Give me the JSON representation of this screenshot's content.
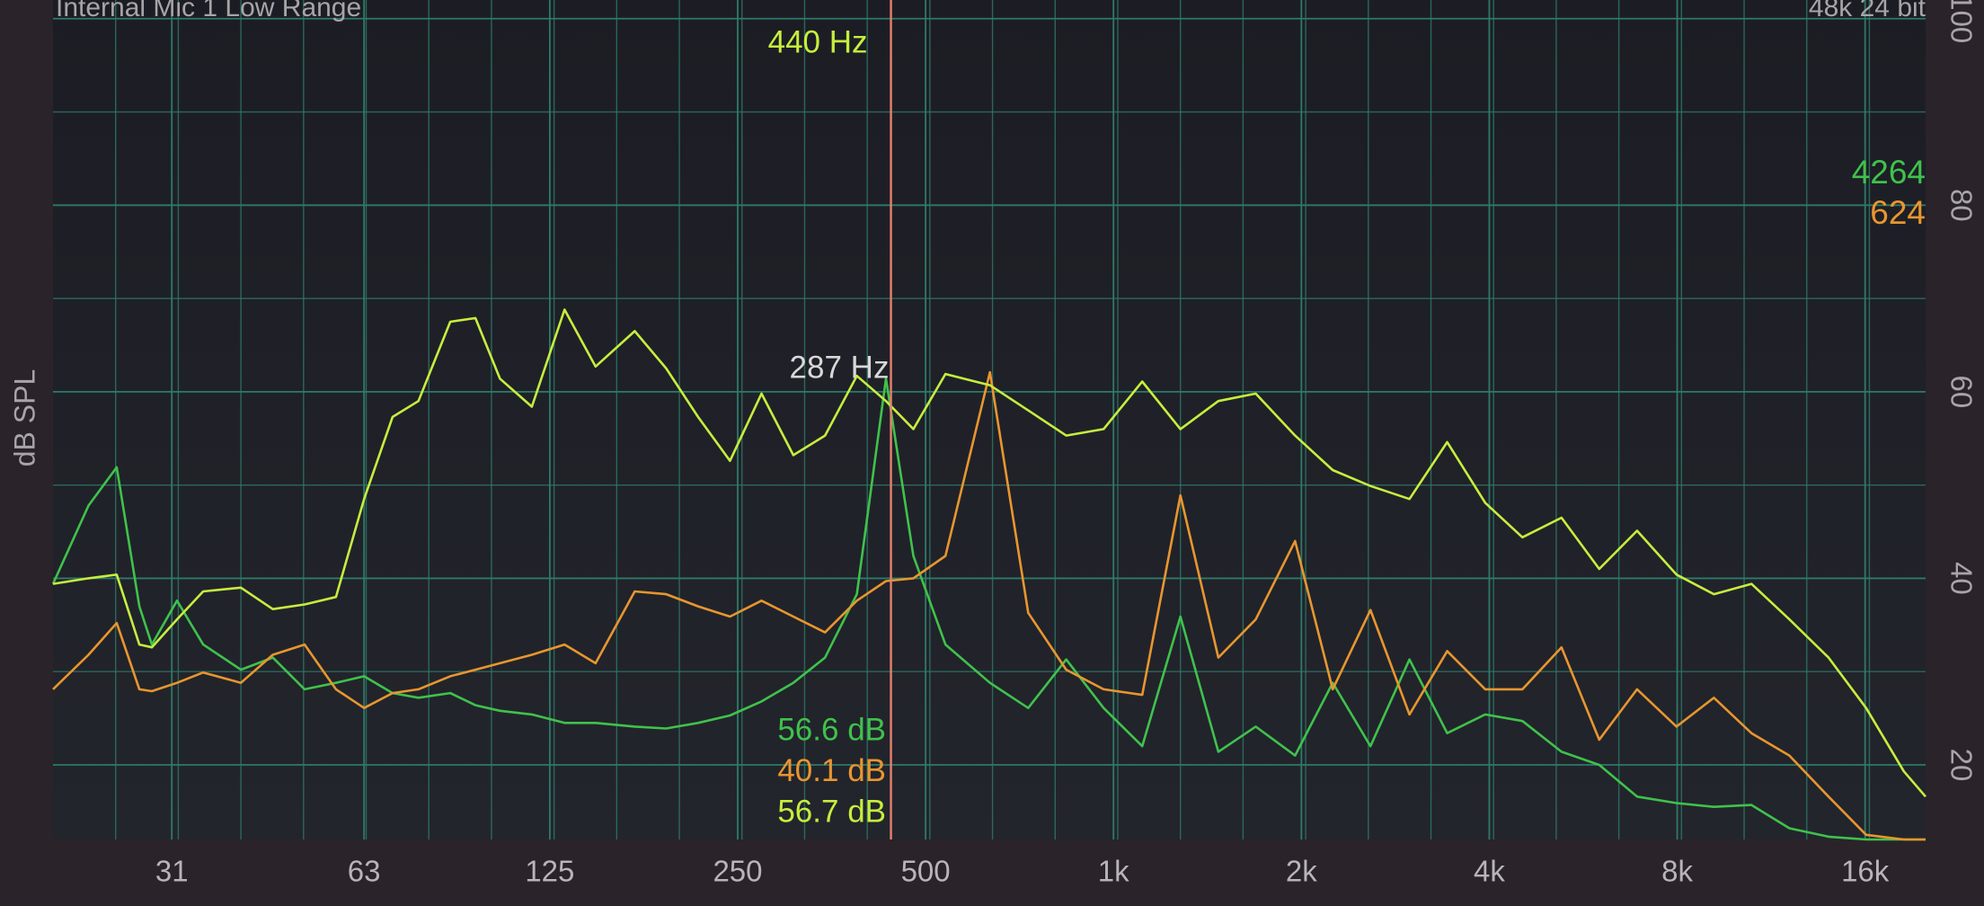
{
  "chart_data": {
    "type": "line",
    "title": "Internal Mic 1 Low Range",
    "format": "48k 24 bit",
    "y_label": "dB SPL",
    "xlog": true,
    "grid": true,
    "xlim": [
      20,
      20000
    ],
    "ylim": [
      12,
      102
    ],
    "xticks": [
      31,
      63,
      125,
      250,
      500,
      {
        "value": 1000,
        "label": "1k"
      },
      {
        "value": 2000,
        "label": "2k"
      },
      {
        "value": 4000,
        "label": "4k"
      },
      {
        "value": 8000,
        "label": "8k"
      },
      {
        "value": 16000,
        "label": "16k"
      }
    ],
    "yticks": [
      20,
      40,
      60,
      80,
      100
    ],
    "cursor": {
      "value": 440,
      "label": "440 Hz",
      "color": "#e8806e"
    },
    "peak_label": "287 Hz",
    "x": [
      20,
      22.8,
      25.3,
      27.5,
      28.8,
      31.6,
      34.8,
      40,
      45,
      50.6,
      56.8,
      63,
      70,
      77,
      86.6,
      95,
      104,
      117,
      132,
      148,
      171,
      192,
      216,
      243,
      273,
      307,
      345,
      388,
      432,
      478,
      538,
      634,
      730,
      840,
      964,
      1112,
      1280,
      1472,
      1690,
      1954,
      2245,
      2580,
      2980,
      3425,
      3940,
      4520,
      5220,
      6000,
      6900,
      7980,
      9160,
      10520,
      12100,
      13980,
      16060,
      18460,
      20000
    ],
    "series": [
      {
        "name": "green",
        "color": "#3fc24c",
        "count": 4264,
        "readout": "56.6 dB",
        "values": [
          39.4,
          47.8,
          51.9,
          37,
          32.9,
          37.6,
          32.9,
          30.2,
          31.5,
          28.1,
          28.8,
          29.5,
          27.7,
          27.2,
          27.7,
          26.4,
          25.8,
          25.4,
          24.5,
          24.5,
          24.1,
          23.9,
          24.5,
          25.3,
          26.8,
          28.8,
          31.5,
          38.3,
          61.4,
          42.4,
          32.9,
          28.8,
          26.1,
          31.3,
          26.1,
          22,
          35.9,
          21.4,
          24.1,
          21,
          28.8,
          22,
          31.3,
          23.4,
          25.4,
          24.7,
          21.4,
          20,
          16.6,
          15.9,
          15.5,
          15.7,
          13.2,
          12.3,
          12,
          12,
          12
        ]
      },
      {
        "name": "orange",
        "color": "#e8962f",
        "count": 624,
        "readout": "40.1 dB",
        "values": [
          28.1,
          31.8,
          35.2,
          28.1,
          27.9,
          28.8,
          29.9,
          28.8,
          31.8,
          32.9,
          28.1,
          26.1,
          27.7,
          28.1,
          29.5,
          30.2,
          30.9,
          31.8,
          32.9,
          30.9,
          38.6,
          38.3,
          37,
          35.9,
          37.6,
          35.9,
          34.2,
          37.6,
          39.7,
          40,
          42.4,
          62.1,
          36.3,
          30.2,
          28.1,
          27.5,
          48.9,
          31.5,
          35.6,
          44,
          28.1,
          36.6,
          25.4,
          32.2,
          28.1,
          28.1,
          32.6,
          22.7,
          28.1,
          24.1,
          27.2,
          23.4,
          21,
          16.6,
          12.5,
          12,
          12
        ]
      },
      {
        "name": "yellow-green",
        "color": "#c6ee3e",
        "readout": "56.7 dB",
        "values": [
          39.4,
          40,
          40.4,
          32.9,
          32.6,
          35.6,
          38.6,
          39,
          36.7,
          37.2,
          38,
          48.5,
          57.3,
          59,
          67.5,
          67.9,
          61.4,
          58.4,
          68.8,
          62.7,
          66.5,
          62.5,
          57.3,
          52.6,
          59.8,
          53.2,
          55.3,
          61.7,
          59,
          56,
          61.9,
          60.7,
          58,
          55.3,
          56,
          61.1,
          56,
          59,
          59.8,
          55.3,
          51.6,
          49.9,
          48.5,
          54.6,
          48.1,
          44.4,
          46.5,
          41,
          45.1,
          40.4,
          38.3,
          39.4,
          35.6,
          31.5,
          26.1,
          19.3,
          16.6
        ]
      }
    ]
  }
}
